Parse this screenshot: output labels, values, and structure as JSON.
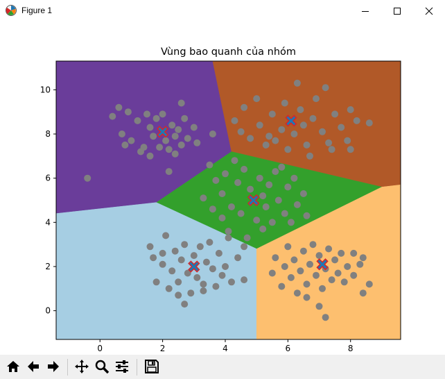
{
  "window": {
    "title": "Figure 1",
    "icon": "matplotlib-icon",
    "controls": [
      "minimize-icon",
      "maximize-icon",
      "close-icon"
    ]
  },
  "toolbar": {
    "buttons": [
      "home-icon",
      "back-icon",
      "forward-icon",
      "pan-icon",
      "zoom-icon",
      "configure-subplots-icon",
      "save-icon"
    ]
  },
  "chart_data": {
    "type": "scatter",
    "title": "Vùng bao quanh của nhóm",
    "xlabel": "",
    "ylabel": "",
    "xlim": [
      -1.4,
      9.6
    ],
    "ylim": [
      -1.3,
      11.3
    ],
    "xticks": [
      0,
      2,
      4,
      6,
      8
    ],
    "yticks": [
      0,
      2,
      4,
      6,
      8,
      10
    ],
    "grid": false,
    "point_color": "#808080",
    "region_colors": [
      "#a6cee3",
      "#ff7f00",
      "#33a02c",
      "#6a3d9a",
      "#b15928",
      "#fdbf6f"
    ],
    "centroid_color": "#1f77b4",
    "centroid_edge": "#d62728",
    "centroids": [
      {
        "x": 2.0,
        "y": 8.1
      },
      {
        "x": 6.1,
        "y": 8.6
      },
      {
        "x": 4.9,
        "y": 5.0
      },
      {
        "x": 3.0,
        "y": 2.0
      },
      {
        "x": 7.1,
        "y": 2.1
      }
    ],
    "regions": [
      {
        "color": "#6a3d9a",
        "polygon": [
          [
            -1.4,
            11.3
          ],
          [
            3.6,
            11.3
          ],
          [
            4.2,
            7.2
          ],
          [
            1.8,
            4.9
          ],
          [
            -1.4,
            4.4
          ]
        ]
      },
      {
        "color": "#b15928",
        "polygon": [
          [
            3.6,
            11.3
          ],
          [
            9.6,
            11.3
          ],
          [
            9.6,
            5.7
          ],
          [
            9.0,
            5.6
          ],
          [
            4.2,
            7.2
          ]
        ]
      },
      {
        "color": "#33a02c",
        "polygon": [
          [
            4.2,
            7.2
          ],
          [
            9.0,
            5.6
          ],
          [
            5.0,
            2.8
          ],
          [
            1.8,
            4.9
          ]
        ]
      },
      {
        "color": "#a6cee3",
        "polygon": [
          [
            -1.4,
            4.4
          ],
          [
            1.8,
            4.9
          ],
          [
            5.0,
            2.8
          ],
          [
            5.0,
            -1.3
          ],
          [
            -1.4,
            -1.3
          ]
        ]
      },
      {
        "color": "#fdbf6f",
        "polygon": [
          [
            5.0,
            2.8
          ],
          [
            9.0,
            5.6
          ],
          [
            9.6,
            5.7
          ],
          [
            9.6,
            -1.3
          ],
          [
            5.0,
            -1.3
          ]
        ]
      }
    ],
    "points": [
      {
        "x": -0.4,
        "y": 6.0
      },
      {
        "x": 0.8,
        "y": 7.5
      },
      {
        "x": 1.0,
        "y": 7.7
      },
      {
        "x": 1.3,
        "y": 7.2
      },
      {
        "x": 1.5,
        "y": 8.9
      },
      {
        "x": 1.6,
        "y": 7.0
      },
      {
        "x": 1.7,
        "y": 7.9
      },
      {
        "x": 1.8,
        "y": 8.7
      },
      {
        "x": 1.9,
        "y": 7.4
      },
      {
        "x": 2.0,
        "y": 8.9
      },
      {
        "x": 2.1,
        "y": 7.7
      },
      {
        "x": 2.2,
        "y": 7.3
      },
      {
        "x": 2.3,
        "y": 8.4
      },
      {
        "x": 2.4,
        "y": 7.9
      },
      {
        "x": 2.5,
        "y": 8.2
      },
      {
        "x": 2.6,
        "y": 7.5
      },
      {
        "x": 2.7,
        "y": 8.7
      },
      {
        "x": 2.8,
        "y": 7.8
      },
      {
        "x": 3.0,
        "y": 8.3
      },
      {
        "x": 3.1,
        "y": 7.6
      },
      {
        "x": 1.2,
        "y": 8.6
      },
      {
        "x": 0.4,
        "y": 8.8
      },
      {
        "x": 0.7,
        "y": 8.0
      },
      {
        "x": 1.6,
        "y": 8.3
      },
      {
        "x": 2.4,
        "y": 7.1
      },
      {
        "x": 0.6,
        "y": 9.2
      },
      {
        "x": 3.6,
        "y": 8.0
      },
      {
        "x": 2.2,
        "y": 6.3
      },
      {
        "x": 2.6,
        "y": 9.4
      },
      {
        "x": 1.4,
        "y": 7.4
      },
      {
        "x": 0.9,
        "y": 9.0
      },
      {
        "x": 4.3,
        "y": 8.6
      },
      {
        "x": 4.5,
        "y": 8.1
      },
      {
        "x": 4.8,
        "y": 7.8
      },
      {
        "x": 5.1,
        "y": 8.4
      },
      {
        "x": 5.3,
        "y": 7.5
      },
      {
        "x": 5.5,
        "y": 8.9
      },
      {
        "x": 5.6,
        "y": 7.7
      },
      {
        "x": 5.8,
        "y": 8.2
      },
      {
        "x": 5.9,
        "y": 9.4
      },
      {
        "x": 6.0,
        "y": 7.3
      },
      {
        "x": 6.2,
        "y": 8.0
      },
      {
        "x": 6.4,
        "y": 9.1
      },
      {
        "x": 6.5,
        "y": 8.4
      },
      {
        "x": 6.6,
        "y": 7.5
      },
      {
        "x": 6.8,
        "y": 8.7
      },
      {
        "x": 6.9,
        "y": 9.6
      },
      {
        "x": 7.1,
        "y": 8.1
      },
      {
        "x": 7.3,
        "y": 7.6
      },
      {
        "x": 7.5,
        "y": 8.9
      },
      {
        "x": 7.7,
        "y": 8.3
      },
      {
        "x": 7.9,
        "y": 7.7
      },
      {
        "x": 8.0,
        "y": 9.1
      },
      {
        "x": 8.2,
        "y": 8.6
      },
      {
        "x": 5.0,
        "y": 9.6
      },
      {
        "x": 6.3,
        "y": 10.3
      },
      {
        "x": 7.2,
        "y": 10.1
      },
      {
        "x": 8.6,
        "y": 8.5
      },
      {
        "x": 8.0,
        "y": 7.3
      },
      {
        "x": 5.4,
        "y": 7.9
      },
      {
        "x": 6.7,
        "y": 7.0
      },
      {
        "x": 7.4,
        "y": 7.3
      },
      {
        "x": 4.6,
        "y": 9.2
      },
      {
        "x": 3.5,
        "y": 6.6
      },
      {
        "x": 3.7,
        "y": 5.9
      },
      {
        "x": 3.9,
        "y": 5.3
      },
      {
        "x": 4.0,
        "y": 6.2
      },
      {
        "x": 4.2,
        "y": 4.7
      },
      {
        "x": 4.4,
        "y": 5.8
      },
      {
        "x": 4.5,
        "y": 4.4
      },
      {
        "x": 4.6,
        "y": 6.4
      },
      {
        "x": 4.8,
        "y": 5.5
      },
      {
        "x": 5.0,
        "y": 4.1
      },
      {
        "x": 5.1,
        "y": 6.0
      },
      {
        "x": 5.3,
        "y": 4.7
      },
      {
        "x": 5.4,
        "y": 5.7
      },
      {
        "x": 5.6,
        "y": 6.3
      },
      {
        "x": 5.7,
        "y": 5.0
      },
      {
        "x": 5.9,
        "y": 4.4
      },
      {
        "x": 6.0,
        "y": 5.6
      },
      {
        "x": 6.2,
        "y": 6.0
      },
      {
        "x": 6.3,
        "y": 4.8
      },
      {
        "x": 6.5,
        "y": 5.3
      },
      {
        "x": 3.3,
        "y": 5.1
      },
      {
        "x": 3.6,
        "y": 4.6
      },
      {
        "x": 4.1,
        "y": 3.6
      },
      {
        "x": 4.7,
        "y": 3.3
      },
      {
        "x": 5.2,
        "y": 3.7
      },
      {
        "x": 5.5,
        "y": 4.0
      },
      {
        "x": 6.1,
        "y": 4.0
      },
      {
        "x": 4.3,
        "y": 6.8
      },
      {
        "x": 5.8,
        "y": 6.5
      },
      {
        "x": 3.9,
        "y": 4.2
      },
      {
        "x": 6.6,
        "y": 4.3
      },
      {
        "x": 5.2,
        "y": 5.2
      },
      {
        "x": 1.6,
        "y": 2.9
      },
      {
        "x": 1.7,
        "y": 2.4
      },
      {
        "x": 1.8,
        "y": 1.3
      },
      {
        "x": 2.0,
        "y": 2.1
      },
      {
        "x": 2.1,
        "y": 3.4
      },
      {
        "x": 2.2,
        "y": 1.0
      },
      {
        "x": 2.3,
        "y": 1.8
      },
      {
        "x": 2.4,
        "y": 2.7
      },
      {
        "x": 2.5,
        "y": 1.3
      },
      {
        "x": 2.6,
        "y": 2.3
      },
      {
        "x": 2.7,
        "y": 3.0
      },
      {
        "x": 2.8,
        "y": 1.7
      },
      {
        "x": 2.9,
        "y": 0.8
      },
      {
        "x": 3.0,
        "y": 2.5
      },
      {
        "x": 3.1,
        "y": 1.5
      },
      {
        "x": 3.2,
        "y": 2.9
      },
      {
        "x": 3.3,
        "y": 1.2
      },
      {
        "x": 3.4,
        "y": 2.2
      },
      {
        "x": 3.5,
        "y": 3.1
      },
      {
        "x": 3.6,
        "y": 1.9
      },
      {
        "x": 3.7,
        "y": 1.1
      },
      {
        "x": 3.8,
        "y": 2.6
      },
      {
        "x": 3.9,
        "y": 1.6
      },
      {
        "x": 4.0,
        "y": 2.0
      },
      {
        "x": 4.1,
        "y": 3.3
      },
      {
        "x": 4.2,
        "y": 1.3
      },
      {
        "x": 4.4,
        "y": 2.4
      },
      {
        "x": 4.6,
        "y": 1.4
      },
      {
        "x": 4.6,
        "y": 2.9
      },
      {
        "x": 2.7,
        "y": 0.3
      },
      {
        "x": 2.5,
        "y": 0.7
      },
      {
        "x": 3.3,
        "y": 0.9
      },
      {
        "x": 2.0,
        "y": 2.6
      },
      {
        "x": 5.5,
        "y": 1.7
      },
      {
        "x": 5.6,
        "y": 2.4
      },
      {
        "x": 5.8,
        "y": 1.1
      },
      {
        "x": 5.9,
        "y": 2.0
      },
      {
        "x": 6.0,
        "y": 2.9
      },
      {
        "x": 6.1,
        "y": 1.5
      },
      {
        "x": 6.2,
        "y": 2.3
      },
      {
        "x": 6.3,
        "y": 0.8
      },
      {
        "x": 6.4,
        "y": 1.8
      },
      {
        "x": 6.5,
        "y": 2.7
      },
      {
        "x": 6.6,
        "y": 1.2
      },
      {
        "x": 6.7,
        "y": 2.1
      },
      {
        "x": 6.8,
        "y": 3.0
      },
      {
        "x": 6.9,
        "y": 1.6
      },
      {
        "x": 7.0,
        "y": 2.5
      },
      {
        "x": 7.1,
        "y": 1.0
      },
      {
        "x": 7.2,
        "y": 1.9
      },
      {
        "x": 7.3,
        "y": 2.8
      },
      {
        "x": 7.4,
        "y": 1.4
      },
      {
        "x": 7.5,
        "y": 2.3
      },
      {
        "x": 7.6,
        "y": 1.7
      },
      {
        "x": 7.7,
        "y": 2.6
      },
      {
        "x": 7.8,
        "y": 1.3
      },
      {
        "x": 7.9,
        "y": 2.0
      },
      {
        "x": 8.1,
        "y": 1.6
      },
      {
        "x": 8.3,
        "y": 2.1
      },
      {
        "x": 8.4,
        "y": 2.4
      },
      {
        "x": 8.6,
        "y": 1.2
      },
      {
        "x": 8.4,
        "y": 0.8
      },
      {
        "x": 7.0,
        "y": 0.2
      },
      {
        "x": 7.2,
        "y": -0.3
      },
      {
        "x": 6.6,
        "y": 0.6
      },
      {
        "x": 8.1,
        "y": 2.6
      }
    ]
  }
}
